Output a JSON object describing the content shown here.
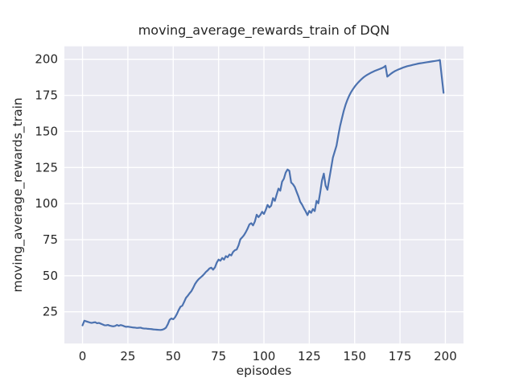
{
  "chart_data": {
    "type": "line",
    "title": "moving_average_rewards_train of DQN",
    "xlabel": "episodes",
    "ylabel": "moving_average_rewards_train",
    "x_ticks": [
      0,
      25,
      50,
      75,
      100,
      125,
      150,
      175,
      200
    ],
    "y_ticks": [
      25,
      50,
      75,
      100,
      125,
      150,
      175,
      200
    ],
    "xlim": [
      -10,
      210
    ],
    "ylim": [
      3,
      209
    ],
    "grid": true,
    "legend": "none",
    "colors": {
      "axes_background": "#eaeaf2",
      "figure_background": "#ffffff",
      "grid": "#ffffff",
      "line": "#4c72b0",
      "text": "#262626"
    },
    "series": [
      {
        "name": "moving_average_rewards_train",
        "x_is_index": true,
        "values": [
          15.6,
          18.8,
          18.4,
          18.0,
          17.6,
          17.3,
          17.6,
          17.8,
          17.1,
          17.3,
          16.8,
          16.3,
          15.7,
          15.6,
          15.9,
          15.4,
          15.1,
          14.9,
          15.2,
          15.9,
          15.3,
          15.8,
          15.5,
          15.0,
          14.6,
          14.7,
          14.5,
          14.3,
          14.1,
          14.0,
          13.8,
          13.9,
          14.0,
          13.6,
          13.4,
          13.4,
          13.2,
          13.1,
          13.0,
          12.8,
          12.7,
          12.6,
          12.5,
          12.4,
          12.6,
          13.1,
          14.0,
          16.3,
          19.4,
          20.4,
          19.8,
          21.2,
          23.4,
          26.2,
          28.5,
          29.2,
          31.8,
          34.6,
          36.1,
          37.8,
          39.3,
          41.6,
          44.2,
          46.1,
          47.6,
          48.7,
          49.8,
          51.1,
          52.6,
          53.7,
          55.1,
          55.6,
          54.2,
          55.8,
          59.1,
          61.2,
          60.4,
          62.3,
          61.2,
          63.6,
          62.8,
          64.7,
          64.1,
          66.5,
          67.7,
          68.2,
          71.1,
          75.2,
          76.6,
          78.1,
          80.2,
          82.7,
          85.6,
          86.4,
          84.9,
          87.6,
          92.3,
          90.6,
          92.1,
          94.3,
          92.8,
          95.6,
          99.1,
          97.3,
          98.6,
          103.8,
          101.9,
          106.2,
          110.4,
          108.9,
          115.2,
          117.3,
          121.5,
          123.6,
          122.7,
          114.6,
          113.4,
          111.5,
          108.2,
          105.0,
          101.2,
          99.3,
          96.8,
          94.6,
          92.0,
          94.9,
          93.6,
          96.2,
          94.8,
          101.9,
          100.2,
          107.6,
          116.1,
          120.8,
          112.4,
          109.6,
          117.0,
          124.4,
          131.8,
          136.0,
          140.1,
          147.3,
          153.9,
          159.2,
          164.3,
          168.5,
          171.9,
          174.8,
          177.2,
          179.2,
          181.0,
          182.6,
          184.0,
          185.3,
          186.5,
          187.6,
          188.5,
          189.3,
          190.0,
          190.7,
          191.3,
          191.9,
          192.4,
          192.9,
          193.4,
          193.9,
          194.5,
          195.5,
          188.0,
          189.0,
          190.0,
          190.9,
          191.7,
          192.3,
          192.9,
          193.4,
          193.9,
          194.4,
          194.8,
          195.2,
          195.5,
          195.8,
          196.1,
          196.4,
          196.7,
          197.0,
          197.2,
          197.4,
          197.6,
          197.8,
          198.0,
          198.2,
          198.4,
          198.6,
          198.8,
          199.0,
          199.2,
          199.5,
          188.0,
          176.8
        ]
      }
    ]
  }
}
